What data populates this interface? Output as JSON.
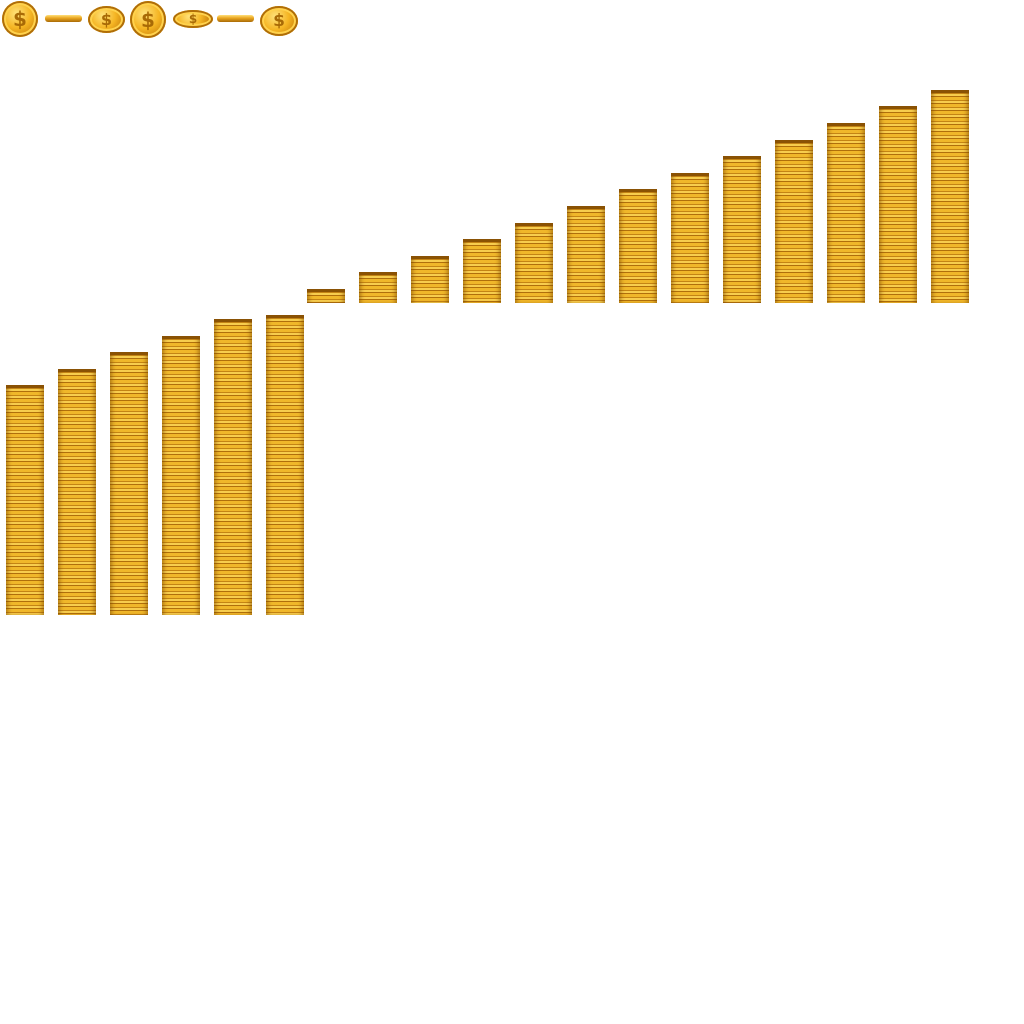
{
  "sprite_sheet": {
    "background": "#ffffff",
    "coin_color": "#f0b72a",
    "coin_shadow": "#a96a06",
    "coin_symbol": "$",
    "spin_frames": [
      {
        "name": "coin-front-icon",
        "view": "front"
      },
      {
        "name": "coin-edge-icon",
        "view": "edge"
      },
      {
        "name": "coin-oblique-icon",
        "view": "oblique"
      },
      {
        "name": "coin-front-tilted-icon",
        "view": "front-tilted"
      },
      {
        "name": "coin-flat-icon",
        "view": "flat"
      },
      {
        "name": "coin-edge-2-icon",
        "view": "edge"
      },
      {
        "name": "coin-oblique-2-icon",
        "view": "oblique"
      }
    ],
    "growth_frames_count": 19
  }
}
